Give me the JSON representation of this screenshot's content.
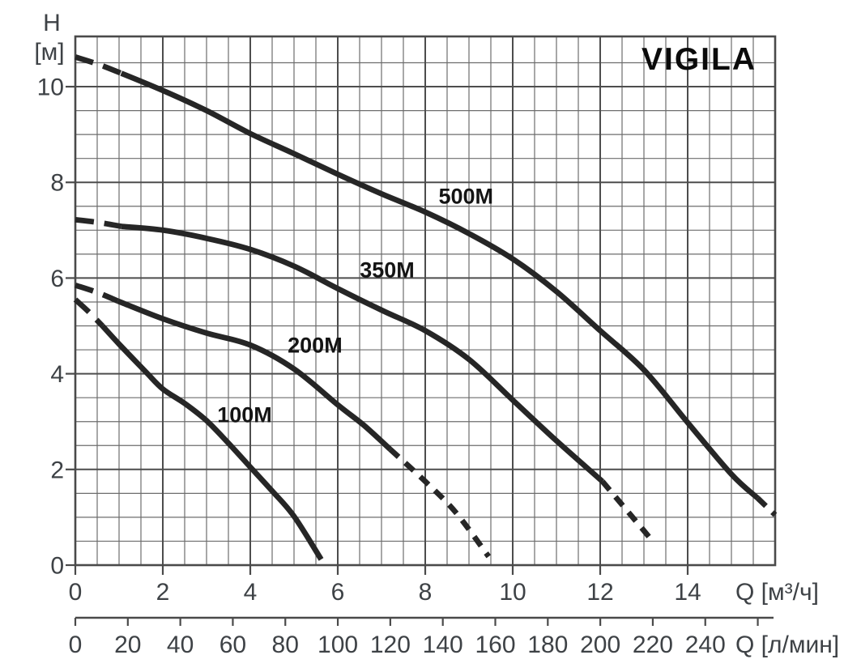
{
  "chart_data": {
    "type": "line",
    "title": "VIGILA",
    "y_axis": {
      "name": "H",
      "unit": "[м]",
      "ticks": [
        0,
        2,
        4,
        6,
        8,
        10
      ],
      "range": [
        0,
        11.05
      ],
      "minor_step": 0.5,
      "major_step": 2,
      "grid": true
    },
    "x_axis_primary": {
      "unit_label": "Q [м³/ч]",
      "ticks": [
        0,
        2,
        4,
        6,
        8,
        10,
        12,
        14
      ],
      "range": [
        0,
        16
      ],
      "minor_step": 0.5,
      "major_step": 2,
      "grid": true
    },
    "x_axis_secondary": {
      "unit_label": "Q [л/мин]",
      "ticks": [
        0,
        20,
        40,
        60,
        80,
        100,
        120,
        140,
        160,
        180,
        200,
        220,
        240
      ],
      "unlabeled_ticks": [
        260
      ],
      "range": [
        0,
        266
      ]
    },
    "series": [
      {
        "name": "500M",
        "label": "500M",
        "label_at": {
          "q": 8.93,
          "h": 7.72
        },
        "segments": [
          {
            "kind": "dashed-start",
            "points": [
              [
                0,
                10.62
              ],
              [
                0.55,
                10.46
              ],
              [
                1.05,
                10.28
              ]
            ]
          },
          {
            "kind": "solid",
            "points": [
              [
                1.05,
                10.28
              ],
              [
                2,
                9.92
              ],
              [
                3,
                9.5
              ],
              [
                4,
                9.02
              ],
              [
                5,
                8.6
              ],
              [
                6,
                8.17
              ],
              [
                7,
                7.76
              ],
              [
                8,
                7.38
              ],
              [
                9,
                6.93
              ],
              [
                10,
                6.4
              ],
              [
                11,
                5.72
              ],
              [
                12,
                4.9
              ],
              [
                13,
                4.08
              ],
              [
                14,
                2.98
              ],
              [
                15,
                1.9
              ],
              [
                15.6,
                1.4
              ]
            ]
          },
          {
            "kind": "dashed-end",
            "points": [
              [
                15.6,
                1.4
              ],
              [
                16,
                1.05
              ]
            ]
          }
        ]
      },
      {
        "name": "350M",
        "label": "350M",
        "label_at": {
          "q": 7.13,
          "h": 6.18
        },
        "segments": [
          {
            "kind": "dashed-start",
            "points": [
              [
                0,
                7.22
              ],
              [
                0.55,
                7.16
              ],
              [
                1.05,
                7.08
              ]
            ]
          },
          {
            "kind": "solid",
            "points": [
              [
                1.05,
                7.08
              ],
              [
                2,
                7.0
              ],
              [
                3,
                6.83
              ],
              [
                4,
                6.6
              ],
              [
                5,
                6.25
              ],
              [
                6,
                5.78
              ],
              [
                7,
                5.33
              ],
              [
                8,
                4.9
              ],
              [
                9,
                4.3
              ],
              [
                10,
                3.45
              ],
              [
                11,
                2.6
              ],
              [
                12.05,
                1.75
              ]
            ]
          },
          {
            "kind": "dashed-end",
            "points": [
              [
                12.05,
                1.75
              ],
              [
                12.65,
                1.1
              ],
              [
                13.2,
                0.5
              ]
            ]
          }
        ]
      },
      {
        "name": "200M",
        "label": "200M",
        "label_at": {
          "q": 5.48,
          "h": 4.6
        },
        "segments": [
          {
            "kind": "dashed-start",
            "points": [
              [
                0,
                5.85
              ],
              [
                0.5,
                5.7
              ],
              [
                0.97,
                5.52
              ]
            ]
          },
          {
            "kind": "solid",
            "points": [
              [
                0.97,
                5.52
              ],
              [
                2,
                5.15
              ],
              [
                3,
                4.85
              ],
              [
                4,
                4.6
              ],
              [
                5,
                4.1
              ],
              [
                6,
                3.35
              ],
              [
                6.6,
                2.92
              ],
              [
                7.2,
                2.42
              ]
            ]
          },
          {
            "kind": "dashed-end",
            "points": [
              [
                7.2,
                2.42
              ],
              [
                8,
                1.75
              ],
              [
                8.7,
                1.1
              ],
              [
                9.45,
                0.18
              ]
            ]
          }
        ]
      },
      {
        "name": "100M",
        "label": "100M",
        "label_at": {
          "q": 3.87,
          "h": 3.15
        },
        "segments": [
          {
            "kind": "dashed-start",
            "points": [
              [
                0,
                5.55
              ],
              [
                0.3,
                5.3
              ],
              [
                0.62,
                5.0
              ]
            ]
          },
          {
            "kind": "solid",
            "points": [
              [
                0.62,
                5.0
              ],
              [
                1,
                4.62
              ],
              [
                1.6,
                4.05
              ],
              [
                2,
                3.68
              ],
              [
                2.5,
                3.38
              ],
              [
                3,
                3.02
              ],
              [
                3.5,
                2.55
              ],
              [
                4,
                2.05
              ],
              [
                4.5,
                1.55
              ],
              [
                5,
                1.02
              ],
              [
                5.62,
                0.12
              ]
            ]
          }
        ]
      }
    ],
    "colors": {
      "curve": "#262626",
      "grid_minor": "#6d6d6d",
      "grid_major": "#4d4d4d",
      "axis": "#4a4a4a",
      "tick_text": "#3e4246",
      "label_text": "#141414",
      "title_text": "#0b0b0b"
    }
  }
}
